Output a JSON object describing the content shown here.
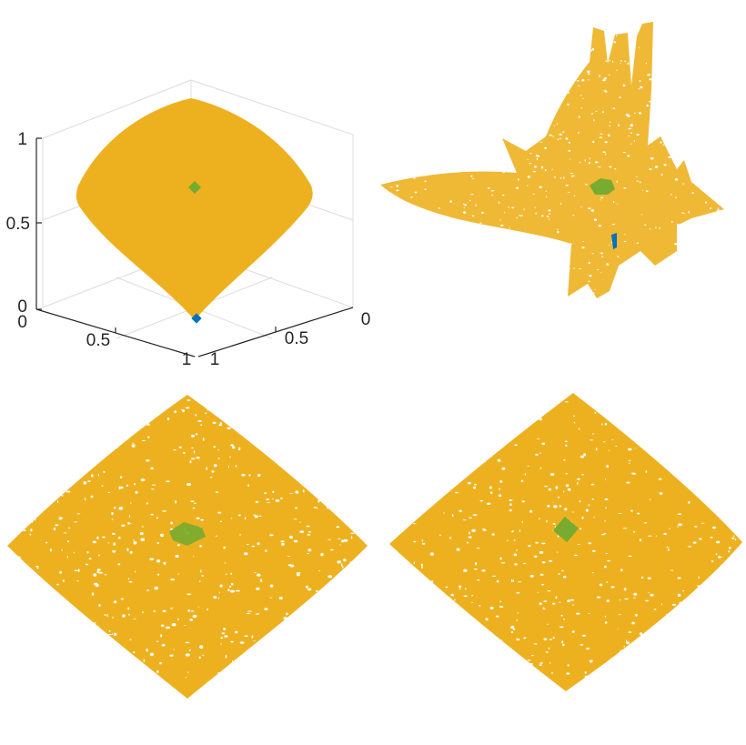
{
  "colors": {
    "surface": "#EDB120",
    "green_marker": "#77AC30",
    "blue_marker": "#0072BD",
    "axis": "#262626",
    "grid": "#dcdcdc",
    "background": "#ffffff"
  },
  "chart_data": [
    {
      "type": "surface3d",
      "panel": "top-left",
      "title": "",
      "xlabel": "",
      "ylabel": "",
      "zlabel": "",
      "grid": true,
      "xlim": [
        0,
        1
      ],
      "ylim": [
        0,
        1
      ],
      "zlim": [
        0,
        1
      ],
      "x_ticks": [
        "0",
        "0.5",
        "1"
      ],
      "y_ticks": [
        "0",
        "0.5",
        "1"
      ],
      "z_ticks": [
        "0",
        "0.5",
        "1"
      ],
      "surface_color": "#EDB120",
      "markers": [
        {
          "color": "#77AC30",
          "x": 0.5,
          "y": 0.5,
          "z": 0.71
        },
        {
          "color": "#0072BD",
          "x": 1,
          "y": 1,
          "z": 0
        }
      ]
    },
    {
      "type": "scatter",
      "panel": "top-right",
      "title": "",
      "axes_visible": false,
      "cloud_color": "#EDB120",
      "cluster_colors": [
        "#77AC30",
        "#0072BD"
      ]
    },
    {
      "type": "scatter",
      "panel": "bottom-left",
      "title": "",
      "axes_visible": false,
      "cloud_color": "#EDB120",
      "cluster_colors": [
        "#77AC30"
      ]
    },
    {
      "type": "scatter",
      "panel": "bottom-right",
      "title": "",
      "axes_visible": false,
      "cloud_color": "#EDB120",
      "cluster_colors": [
        "#77AC30"
      ]
    }
  ]
}
